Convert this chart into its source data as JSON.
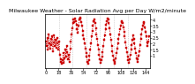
{
  "title": "Milwaukee Weather - Solar Radiation Avg per Day W/m2/minute",
  "background_color": "#ffffff",
  "plot_bg_color": "#ffffff",
  "line_color": "#cc0000",
  "grid_color": "#bbbbbb",
  "values": [
    2.2,
    1.8,
    2.5,
    1.5,
    2.8,
    2.0,
    1.6,
    2.4,
    1.9,
    2.6,
    1.4,
    2.1,
    2.7,
    1.8,
    2.3,
    1.7,
    2.5,
    2.0,
    1.5,
    2.2,
    1.1,
    0.7,
    0.5,
    0.3,
    0.6,
    1.2,
    0.4,
    0.8,
    1.5,
    0.9,
    1.8,
    1.3,
    0.7,
    1.1,
    0.5,
    1.6,
    2.2,
    2.8,
    3.3,
    3.7,
    4.0,
    3.8,
    4.1,
    3.9,
    3.6,
    3.2,
    2.9,
    3.5,
    4.0,
    4.2,
    4.1,
    3.8,
    3.5,
    3.1,
    2.7,
    2.4,
    2.0,
    1.6,
    1.2,
    0.9,
    0.5,
    0.3,
    0.6,
    1.0,
    1.5,
    2.0,
    2.6,
    3.1,
    3.5,
    3.9,
    4.0,
    3.7,
    3.3,
    2.8,
    2.4,
    1.9,
    1.5,
    1.1,
    0.7,
    0.4,
    0.6,
    0.9,
    1.3,
    1.8,
    2.3,
    2.7,
    3.2,
    3.6,
    3.9,
    4.1,
    4.0,
    3.7,
    3.3,
    2.8,
    2.3,
    1.8,
    1.4,
    1.0,
    0.6,
    0.3,
    0.5,
    0.8,
    1.2,
    1.6,
    2.0,
    2.4,
    2.8,
    3.2,
    3.5,
    3.8,
    3.9,
    3.7,
    3.4,
    3.0,
    2.6,
    2.1,
    1.7,
    1.3,
    0.9,
    0.6,
    0.4,
    0.7,
    1.1,
    1.5,
    1.9,
    2.3,
    2.7,
    2.4,
    2.0,
    1.6,
    1.2,
    0.8,
    0.5,
    0.7,
    1.0,
    1.4,
    1.9,
    2.4,
    2.8,
    3.2,
    3.5,
    3.8,
    3.7,
    3.4,
    3.0,
    2.6,
    2.1,
    1.8,
    2.2,
    2.6
  ],
  "ylim": [
    0.0,
    4.5
  ],
  "yticks": [
    1.0,
    1.5,
    2.0,
    2.5,
    3.0,
    3.5,
    4.0
  ],
  "ytick_labels": [
    "1",
    "1.5",
    "2",
    "2.5",
    "3",
    "3.5",
    "4"
  ],
  "vgrid_positions": [
    19,
    38,
    58,
    78,
    98,
    118
  ],
  "n_xticks": 8,
  "title_fontsize": 4.5,
  "tick_fontsize": 3.5,
  "linewidth": 0.6,
  "markersize": 1.8
}
